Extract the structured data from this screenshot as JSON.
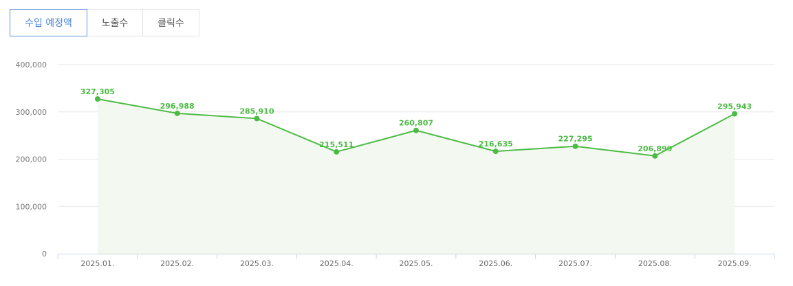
{
  "tabs": [
    {
      "label": "수입 예정액",
      "active": true
    },
    {
      "label": "노출수",
      "active": false
    },
    {
      "label": "클릭수",
      "active": false
    }
  ],
  "colors": {
    "line": "#4cbb44",
    "area": "#f3f9f0",
    "grid": "#e6e6e6",
    "axis": "#c9d6ea",
    "active_tab": "#4a86d9"
  },
  "chart_data": {
    "type": "line",
    "categories": [
      "2025.01.",
      "2025.02.",
      "2025.03.",
      "2025.04.",
      "2025.05.",
      "2025.06.",
      "2025.07.",
      "2025.08.",
      "2025.09."
    ],
    "series": [
      {
        "values": [
          327305,
          296988,
          285910,
          215511,
          260807,
          216635,
          227295,
          206899,
          295943
        ]
      }
    ],
    "data_labels": [
      "327,305",
      "296,988",
      "285,910",
      "215,511",
      "260,807",
      "216,635",
      "227,295",
      "206,899",
      "295,943"
    ],
    "yticks": [
      "0",
      "100,000",
      "200,000",
      "300,000",
      "400,000"
    ],
    "ylim": [
      0,
      400000
    ],
    "grid": true,
    "area_fill": true
  }
}
